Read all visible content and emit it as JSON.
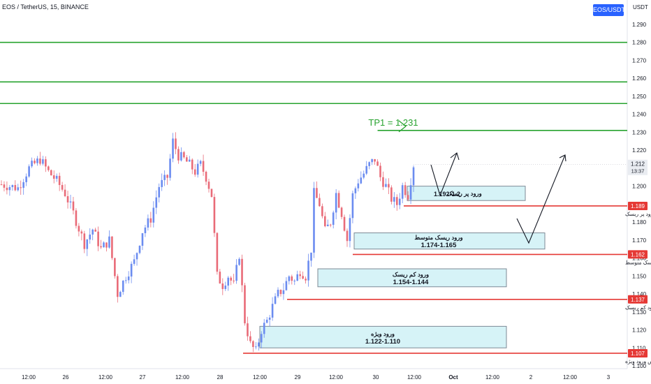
{
  "header": {
    "symbol_line": "EOS / TetherUS, 15, BINANCE",
    "symbol_badge": "EOS/USDT",
    "currency": "USDT"
  },
  "chart_data": {
    "type": "candlestick",
    "symbol": "EOS / TetherUS",
    "interval": "15",
    "exchange": "BINANCE",
    "ylim": [
      1.1,
      1.295
    ],
    "y_ticks": [
      "1.290",
      "1.280",
      "1.270",
      "1.260",
      "1.250",
      "1.240",
      "1.230",
      "1.220",
      "1.210",
      "1.200",
      "1.190",
      "1.180",
      "1.170",
      "1.160",
      "1.150",
      "1.140",
      "1.130",
      "1.120",
      "1.110",
      "1.100"
    ],
    "x_ticks": [
      "12:00",
      "26",
      "12:00",
      "27",
      "12:00",
      "28",
      "12:00",
      "29",
      "12:00",
      "30",
      "12:00",
      "Oct",
      "12:00",
      "2",
      "12:00",
      "3"
    ],
    "grid": false,
    "last_price": {
      "value": "1.212",
      "countdown": "13:37"
    },
    "price_path": [
      [
        0,
        1.201
      ],
      [
        6,
        1.199
      ],
      [
        10,
        1.21
      ],
      [
        14,
        1.215
      ],
      [
        17,
        1.208
      ],
      [
        20,
        1.203
      ],
      [
        23,
        1.196
      ],
      [
        26,
        1.185
      ],
      [
        30,
        1.168
      ],
      [
        33,
        1.176
      ],
      [
        36,
        1.165
      ],
      [
        39,
        1.17
      ],
      [
        42,
        1.14
      ],
      [
        45,
        1.15
      ],
      [
        48,
        1.158
      ],
      [
        51,
        1.175
      ],
      [
        54,
        1.182
      ],
      [
        57,
        1.2
      ],
      [
        60,
        1.205
      ],
      [
        62,
        1.225
      ],
      [
        64,
        1.217
      ],
      [
        66,
        1.215
      ],
      [
        68,
        1.212
      ],
      [
        70,
        1.208
      ],
      [
        72,
        1.212
      ],
      [
        74,
        1.205
      ],
      [
        76,
        1.195
      ],
      [
        78,
        1.15
      ],
      [
        80,
        1.145
      ],
      [
        82,
        1.15
      ],
      [
        84,
        1.145
      ],
      [
        86,
        1.162
      ],
      [
        88,
        1.125
      ],
      [
        90,
        1.112
      ],
      [
        92,
        1.108
      ],
      [
        94,
        1.12
      ],
      [
        96,
        1.125
      ],
      [
        98,
        1.133
      ],
      [
        100,
        1.14
      ],
      [
        102,
        1.143
      ],
      [
        104,
        1.15
      ],
      [
        106,
        1.147
      ],
      [
        108,
        1.153
      ],
      [
        110,
        1.15
      ],
      [
        112,
        1.165
      ],
      [
        113,
        1.196
      ],
      [
        115,
        1.19
      ],
      [
        117,
        1.175
      ],
      [
        119,
        1.18
      ],
      [
        121,
        1.196
      ],
      [
        123,
        1.185
      ],
      [
        125,
        1.17
      ],
      [
        127,
        1.195
      ],
      [
        129,
        1.203
      ],
      [
        131,
        1.207
      ],
      [
        133,
        1.212
      ],
      [
        135,
        1.215
      ],
      [
        137,
        1.205
      ],
      [
        139,
        1.2
      ],
      [
        141,
        1.193
      ],
      [
        143,
        1.19
      ],
      [
        145,
        1.2
      ],
      [
        147,
        1.195
      ],
      [
        149,
        1.212
      ]
    ],
    "horizontal_lines": [
      {
        "value": 1.28,
        "color": "#27a32f",
        "role": "resistance"
      },
      {
        "value": 1.258,
        "color": "#27a32f",
        "role": "resistance"
      },
      {
        "value": 1.246,
        "color": "#27a32f",
        "role": "resistance"
      },
      {
        "value": 1.231,
        "color": "#27a32f",
        "role": "take-profit",
        "label": "TP1 = 1.231"
      }
    ],
    "stop_lines": [
      {
        "value": 1.189,
        "tag": "1.189",
        "label": "استاپ لاس ورود پر ریسک",
        "color": "#e53935"
      },
      {
        "value": 1.162,
        "tag": "1.162",
        "label": "استاپ لاس ورود ریسک متوسط",
        "color": "#e53935"
      },
      {
        "value": 1.137,
        "tag": "1.137",
        "label": "استاپ لاس ورود کم ریسک",
        "color": "#e53935"
      },
      {
        "value": 1.107,
        "tag": "1.107",
        "label": "استاپ لاس ورود ویژه",
        "color": "#e53935"
      }
    ],
    "entry_zones": [
      {
        "top": 1.2,
        "bottom": 1.192,
        "title": "ورود پر ریسک",
        "range": "1.192-1.2"
      },
      {
        "top": 1.174,
        "bottom": 1.165,
        "title": "ورود ریسک متوسط",
        "range": "1.174-1.165"
      },
      {
        "top": 1.154,
        "bottom": 1.144,
        "title": "ورود کم ریسک",
        "range": "1.154-1.144"
      },
      {
        "top": 1.122,
        "bottom": 1.11,
        "title": "ورود ویژه",
        "range": "1.122-1.110"
      }
    ],
    "colors": {
      "up": "#6b8cf0",
      "down": "#e96b78",
      "tp": "#27a32f",
      "stop": "#e53935",
      "zone_fill": "#d6f3f7",
      "zone_stroke": "#7d8a96"
    }
  }
}
